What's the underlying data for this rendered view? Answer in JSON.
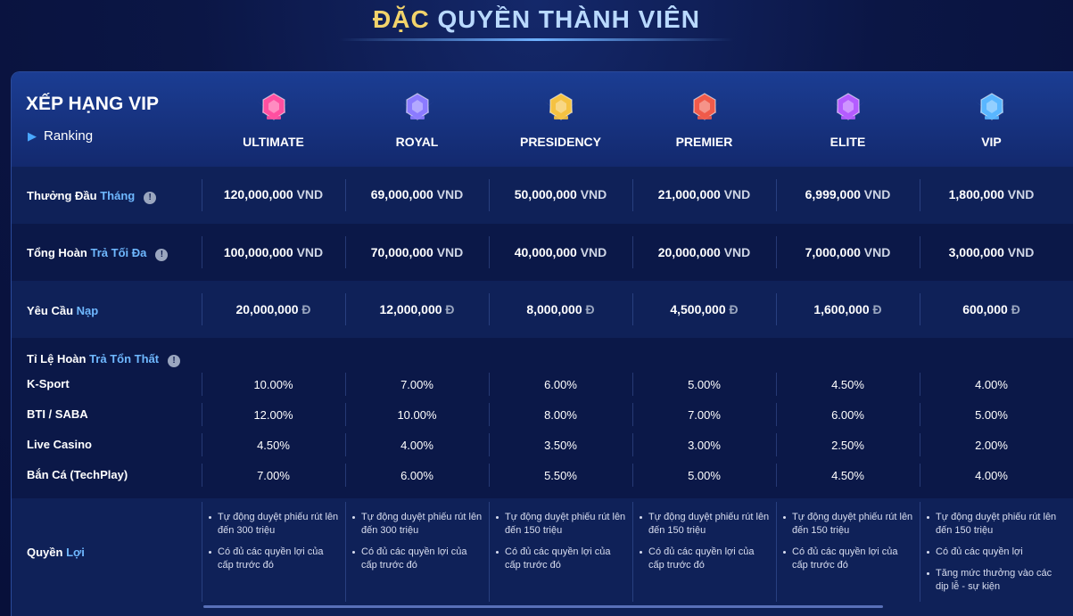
{
  "page": {
    "title_part1": "ĐẶC",
    "title_part2": "QUYỀN THÀNH VIÊN"
  },
  "header": {
    "title": "XẾP HẠNG VIP",
    "subtitle": "Ranking",
    "tiers": [
      {
        "name": "ULTIMATE",
        "icon": "ultimate-badge-icon",
        "color": "#ff4fa0"
      },
      {
        "name": "ROYAL",
        "icon": "royal-badge-icon",
        "color": "#8b7bff"
      },
      {
        "name": "PRESIDENCY",
        "icon": "presidency-badge-icon",
        "color": "#f5c242"
      },
      {
        "name": "PREMIER",
        "icon": "premier-badge-icon",
        "color": "#f05a4a"
      },
      {
        "name": "ELITE",
        "icon": "elite-badge-icon",
        "color": "#b45cff"
      },
      {
        "name": "VIP",
        "icon": "vip-badge-icon",
        "color": "#59b6ff"
      }
    ]
  },
  "monthly_bonus": {
    "label_part1": "Thưởng Đầu",
    "label_part2": "Tháng",
    "values": [
      "120,000,000",
      "69,000,000",
      "50,000,000",
      "21,000,000",
      "6,999,000",
      "1,800,000"
    ],
    "currency": "VND"
  },
  "max_refund": {
    "label_part1": "Tổng Hoàn",
    "label_part2": "Trả Tối Đa",
    "values": [
      "100,000,000",
      "70,000,000",
      "40,000,000",
      "20,000,000",
      "7,000,000",
      "3,000,000"
    ],
    "currency": "VND"
  },
  "deposit_requirement": {
    "label_part1": "Yêu Cầu",
    "label_part2": "Nạp",
    "values": [
      "20,000,000",
      "12,000,000",
      "8,000,000",
      "4,500,000",
      "1,600,000",
      "600,000"
    ],
    "currency": "Đ"
  },
  "loss_refund": {
    "label_part1": "Tỉ Lệ Hoàn",
    "label_part2": "Trả Tổn Thất",
    "rows": [
      {
        "label": "K-Sport",
        "values": [
          "10.00%",
          "7.00%",
          "6.00%",
          "5.00%",
          "4.50%",
          "4.00%"
        ]
      },
      {
        "label": "BTI / SABA",
        "values": [
          "12.00%",
          "10.00%",
          "8.00%",
          "7.00%",
          "6.00%",
          "5.00%"
        ]
      },
      {
        "label": "Live Casino",
        "values": [
          "4.50%",
          "4.00%",
          "3.50%",
          "3.00%",
          "2.50%",
          "2.00%"
        ]
      },
      {
        "label": "Bắn Cá (TechPlay)",
        "values": [
          "7.00%",
          "6.00%",
          "5.50%",
          "5.00%",
          "4.50%",
          "4.00%"
        ]
      }
    ]
  },
  "benefits": {
    "label_part1": "Quyền",
    "label_part2": "Lợi",
    "columns": [
      [
        "Tự động duyệt phiếu rút lên đến 300 triệu",
        "Có đủ các quyền lợi của cấp trước đó"
      ],
      [
        "Tự động duyệt phiếu rút lên đến 300 triệu",
        "Có đủ các quyền lợi của cấp trước đó"
      ],
      [
        "Tự động duyệt phiếu rút lên đến 150 triệu",
        "Có đủ các quyền lợi của cấp trước đó"
      ],
      [
        "Tự động duyệt phiếu rút lên đến 150 triệu",
        "Có đủ các quyền lợi của cấp trước đó"
      ],
      [
        "Tự động duyệt phiếu rút lên đến 150 triệu",
        "Có đủ các quyền lợi của cấp trước đó"
      ],
      [
        "Tự động duyệt phiếu rút lên đến 150 triệu",
        "Có đủ các quyền lợi",
        "Tăng mức thưởng vào các dịp lễ - sự kiện"
      ]
    ]
  }
}
